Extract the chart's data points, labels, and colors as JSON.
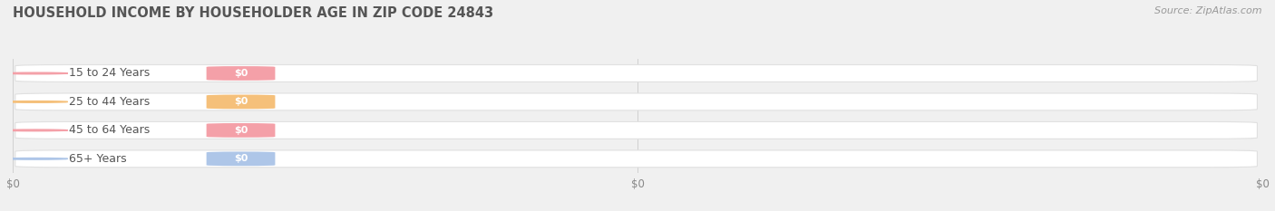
{
  "title": "HOUSEHOLD INCOME BY HOUSEHOLDER AGE IN ZIP CODE 24843",
  "source_text": "Source: ZipAtlas.com",
  "categories": [
    "15 to 24 Years",
    "25 to 44 Years",
    "45 to 64 Years",
    "65+ Years"
  ],
  "values": [
    0,
    0,
    0,
    0
  ],
  "circle_colors": [
    "#f4a0a8",
    "#f5c07a",
    "#f4a0a8",
    "#aec6e8"
  ],
  "value_pill_colors": [
    "#f4a0a8",
    "#f5c07a",
    "#f4a0a8",
    "#aec6e8"
  ],
  "background_color": "#f0f0f0",
  "bar_bg_color": "#ffffff",
  "bar_outer_color": "#e0e0e0",
  "title_color": "#555555",
  "source_color": "#999999",
  "category_text_color": "#555555",
  "tick_label_color": "#888888",
  "figsize": [
    14.06,
    2.33
  ],
  "dpi": 100
}
